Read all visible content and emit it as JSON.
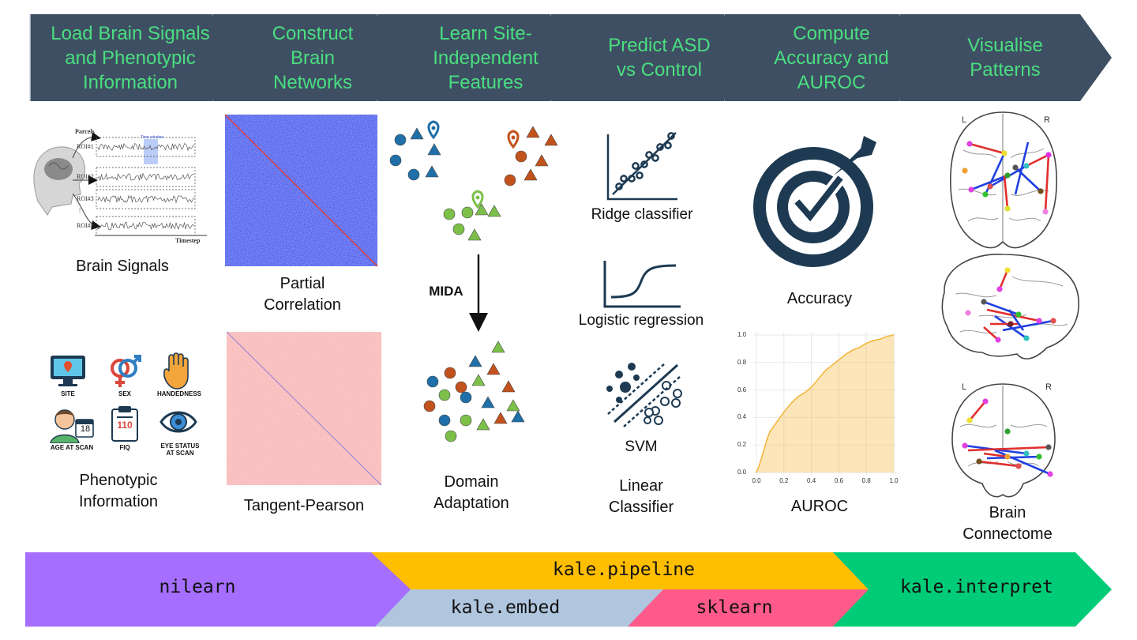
{
  "steps": [
    "Load Brain Signals\nand Phenotypic\nInformation",
    "Construct\nBrain\nNetworks",
    "Learn Site-\nIndependent\nFeatures",
    "Predict ASD\nvs Control",
    "Compute\nAccuracy and\nAUROC",
    "Visualise\nPatterns"
  ],
  "captions": {
    "brain_signals": "Brain Signals",
    "phenotypic": "Phenotypic\nInformation",
    "partial": "Partial\nCorrelation",
    "tangent": "Tangent-Pearson",
    "mida": "MIDA",
    "domain": "Domain\nAdaptation",
    "ridge": "Ridge classifier",
    "logistic": "Logistic regression",
    "svm": "SVM",
    "linear": "Linear\nClassifier",
    "accuracy": "Accuracy",
    "auroc": "AUROC",
    "connectome": "Brain\nConnectome"
  },
  "signal_panel": {
    "header": "Parcels",
    "rois": [
      "ROI#1",
      "ROI#2",
      "ROI#3",
      "⋮",
      "ROI#N"
    ],
    "xlabel": "Timestep",
    "highlight": "Time window"
  },
  "phenotype_items": [
    "SITE",
    "SEX",
    "HANDEDNESS",
    "AGE AT SCAN",
    "FIQ",
    "EYE STATUS\nAT SCAN"
  ],
  "icon_text": {
    "calendar": "18",
    "clipboard": "110"
  },
  "brain_labels": {
    "left": "L",
    "right": "R"
  },
  "libraries": [
    "nilearn",
    "kale.pipeline",
    "kale.embed",
    "sklearn",
    "kale.interpret"
  ],
  "colors": {
    "banner": "#3e4f63",
    "step_text": "#4ade80",
    "nilearn": "#a56eff",
    "pipeline": "#ffbe00",
    "embed": "#b0c6de",
    "sklearn": "#ff5a8a",
    "interpret": "#00cc77",
    "domain_blue": "#1f6fa8",
    "domain_orange": "#c2521c",
    "domain_green": "#7cc04a",
    "navy": "#1d3a52",
    "roc": "#f3b437"
  },
  "chart_data": {
    "type": "area",
    "title": "",
    "xlabel": "",
    "ylabel": "",
    "xlim": [
      0,
      1
    ],
    "ylim": [
      0,
      1
    ],
    "xticks": [
      "0.0",
      "0.2",
      "0.4",
      "0.6",
      "0.8",
      "1.0"
    ],
    "yticks": [
      "0.0",
      "0.2",
      "0.4",
      "0.6",
      "0.8",
      "1.0"
    ],
    "grid": true,
    "series": [
      {
        "x": [
          0.0,
          0.02,
          0.05,
          0.08,
          0.1,
          0.15,
          0.2,
          0.25,
          0.3,
          0.35,
          0.4,
          0.45,
          0.5,
          0.55,
          0.6,
          0.65,
          0.7,
          0.75,
          0.8,
          0.85,
          0.9,
          0.95,
          1.0
        ],
        "y": [
          0.0,
          0.05,
          0.15,
          0.25,
          0.3,
          0.37,
          0.44,
          0.5,
          0.55,
          0.58,
          0.62,
          0.68,
          0.74,
          0.78,
          0.82,
          0.86,
          0.89,
          0.91,
          0.94,
          0.96,
          0.97,
          0.99,
          1.0
        ]
      }
    ]
  }
}
